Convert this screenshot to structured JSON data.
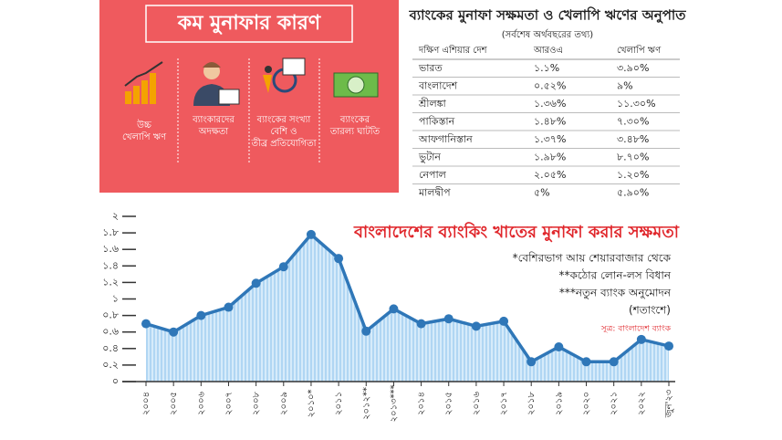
{
  "reasons_panel": {
    "title": "কম মুনাফার কারণ",
    "items": [
      [
        "উচ্চ",
        "খেলাপি ঋণ"
      ],
      [
        "ব্যাংকারদের",
        "অদক্ষতা"
      ],
      [
        "ব্যাংকের সংখ্যা",
        "বেশি ও",
        "তীব্র প্রতিযোগিতা"
      ],
      [
        "ব্যাংকের",
        "তারল্য ঘাটতি"
      ]
    ]
  },
  "table": {
    "title": "ব্যাংকের মুনাফা সক্ষমতা ও খেলাপি ঋণের অনুপাত",
    "subtitle": "(সর্বশেষ অর্থবছরের তথ্য)",
    "header": [
      "দক্ষিণ এশিয়ার দেশ",
      "আরওএ",
      "খেলাপি ঋণ"
    ],
    "rows": [
      [
        "ভারত",
        "১.১%",
        "৩.৯০%"
      ],
      [
        "বাংলাদেশ",
        "০.৫২%",
        "৯%"
      ],
      [
        "শ্রীলঙ্কা",
        "১.৩৬%",
        "১১.৩০%"
      ],
      [
        "পাকিস্তান",
        "১.৪৮%",
        "৭.৩০%"
      ],
      [
        "আফগানিস্তান",
        "১.৩৭%",
        "৩.৪৮%"
      ],
      [
        "ভুটান",
        "১.৯৮%",
        "৮.৭০%"
      ],
      [
        "নেপাল",
        "২.০৫%",
        "১.২০%"
      ],
      [
        "মালদ্বীপ",
        "৫%",
        "৫.৯০%"
      ]
    ]
  },
  "chart_data": {
    "type": "line",
    "title": "বাংলাদেশের ব্যাংকিং খাতের মুনাফা করার সক্ষমতা",
    "annotations": [
      "*বেশিরভাগ আয় শেয়ারবাজার থেকে",
      "**কঠোর লোন-লস বিধান",
      "***নতুন ব্যাংক অনুমোদন",
      "(শতাংশে)"
    ],
    "source": "সূত্র: বাংলাদেশ ব্যাংক",
    "categories": [
      "২০০৪",
      "২০০৫",
      "২০০৬",
      "২০০৭",
      "২০০৮",
      "২০০৯",
      "২০১০*",
      "২০১১",
      "২০১২**",
      "২০১৩***",
      "২০১৪",
      "২০১৫",
      "২০১৬",
      "২০১৭",
      "২০১৮",
      "২০১৯",
      "২০২০",
      "২০২১",
      "২০২২",
      "জুন'২৩"
    ],
    "series": [
      {
        "color": "#2f77b8",
        "values": [
          0.7,
          0.6,
          0.8,
          0.9,
          1.19,
          1.39,
          1.78,
          1.49,
          0.61,
          0.88,
          0.7,
          0.76,
          0.67,
          0.73,
          0.24,
          0.42,
          0.24,
          0.24,
          0.51,
          0.43
        ]
      }
    ],
    "ylim": [
      0,
      2
    ],
    "yticks": [
      {
        "value": 0,
        "label": "০"
      },
      {
        "value": 0.2,
        "label": "০.২"
      },
      {
        "value": 0.4,
        "label": "০.৪"
      },
      {
        "value": 0.6,
        "label": "০.৬"
      },
      {
        "value": 0.8,
        "label": "০.৮"
      },
      {
        "value": 1,
        "label": "১"
      },
      {
        "value": 1.2,
        "label": "১.২"
      },
      {
        "value": 1.4,
        "label": "১.৪"
      },
      {
        "value": 1.6,
        "label": "১.৬"
      },
      {
        "value": 1.8,
        "label": "১.৮"
      },
      {
        "value": 2,
        "label": "২"
      }
    ]
  }
}
